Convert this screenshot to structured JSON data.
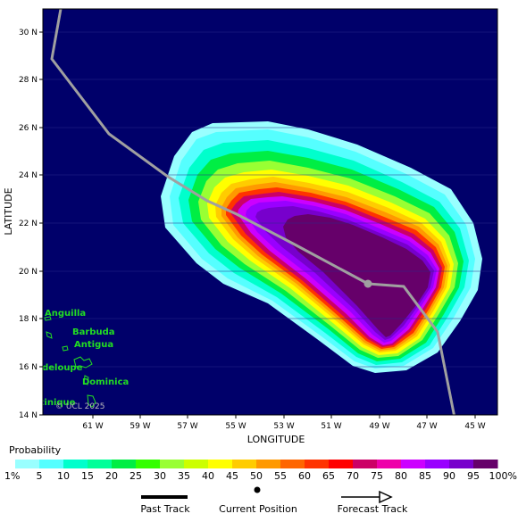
{
  "map": {
    "x_axis_title": "LONGITUDE",
    "y_axis_title": "LATITUDE",
    "lat_ticks": [
      "30 N",
      "28 N",
      "26 N",
      "24 N",
      "22 N",
      "20 N",
      "18 N",
      "16 N",
      "14 N"
    ],
    "lon_ticks": [
      "61 W",
      "59 W",
      "57 W",
      "55 W",
      "53 W",
      "51 W",
      "49 W",
      "47 W",
      "45 W"
    ],
    "islands": [
      "Anguilla",
      "Barbuda",
      "Antigua",
      "Guadeloupe",
      "Dominica",
      "Martinique"
    ],
    "credit": "© UCL 2025",
    "ocean_color": "#00006a"
  },
  "legend": {
    "title": "Probability",
    "labels": [
      "1%",
      "5",
      "10",
      "15",
      "20",
      "25",
      "30",
      "35",
      "40",
      "45",
      "50",
      "55",
      "60",
      "65",
      "70",
      "75",
      "80",
      "85",
      "90",
      "95",
      "100%"
    ],
    "colors": [
      "#99ffff",
      "#55ffff",
      "#00ffcc",
      "#00ff99",
      "#00ee44",
      "#33ff00",
      "#99ff33",
      "#ccff00",
      "#ffff00",
      "#ffcc00",
      "#ff9900",
      "#ff6600",
      "#ff3300",
      "#ff0000",
      "#cc0066",
      "#ee00aa",
      "#cc00ff",
      "#9900ff",
      "#7700cc",
      "#66006a"
    ],
    "track_items": [
      "Past Track",
      "Current Position",
      "Forecast Track"
    ]
  }
}
